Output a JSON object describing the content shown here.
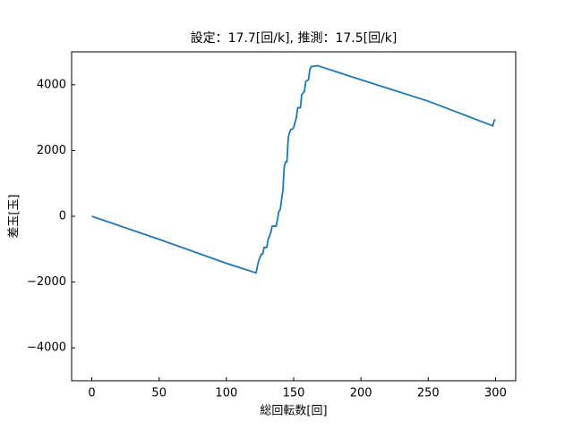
{
  "chart_data": {
    "type": "line",
    "title": "設定：17.7[回/k], 推測：17.5[回/k]",
    "x_label": "総回転数[回]",
    "y_label": "差玉[玉]",
    "x": [
      0,
      50,
      100,
      122,
      124,
      126,
      127,
      128,
      130,
      131,
      133,
      134,
      137,
      138,
      139,
      140,
      141,
      142,
      143,
      144,
      145,
      146,
      147,
      148,
      149,
      150,
      152,
      153,
      155,
      156,
      158,
      159,
      161,
      162,
      163,
      168,
      170,
      200,
      250,
      298,
      299,
      300
    ],
    "series": [
      {
        "name": "差玉",
        "color": "#1f77b4",
        "values": [
          0,
          -700,
          -1430,
          -1720,
          -1350,
          -1150,
          -1150,
          -950,
          -950,
          -700,
          -500,
          -300,
          -300,
          -100,
          150,
          200,
          500,
          800,
          1500,
          1650,
          1650,
          2400,
          2550,
          2650,
          2650,
          2700,
          3000,
          3300,
          3300,
          3700,
          3800,
          4100,
          4150,
          4450,
          4550,
          4580,
          4550,
          4150,
          3500,
          2750,
          2920,
          2930
        ]
      }
    ],
    "xlim": [
      -15,
      315
    ],
    "ylim": [
      -5000,
      5000
    ],
    "xticks": [
      0,
      50,
      100,
      150,
      200,
      250,
      300
    ],
    "yticks": [
      {
        "value": -4000,
        "label": "−4000"
      },
      {
        "value": -2000,
        "label": "−2000"
      },
      0,
      2000,
      4000
    ],
    "grid": false
  }
}
